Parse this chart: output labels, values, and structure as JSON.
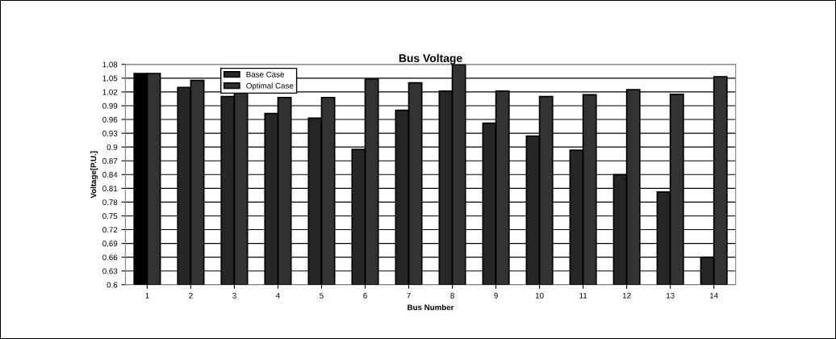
{
  "chart_data": {
    "type": "bar",
    "title": "Bus Voltage",
    "xlabel": "Bus Number",
    "ylabel": "Voltage[P.U.]",
    "categories": [
      "1",
      "2",
      "3",
      "4",
      "5",
      "6",
      "7",
      "8",
      "9",
      "10",
      "11",
      "12",
      "13",
      "14"
    ],
    "series": [
      {
        "name": "Base Case",
        "color": "#262626",
        "colors": [
          "#000000",
          "#262626",
          "#262626",
          "#262626",
          "#262626",
          "#262626",
          "#262626",
          "#262626",
          "#262626",
          "#262626",
          "#262626",
          "#262626",
          "#262626",
          "#262626"
        ],
        "values": [
          1.06,
          1.03,
          1.01,
          0.973,
          0.963,
          0.895,
          0.98,
          1.022,
          0.952,
          0.924,
          0.893,
          0.84,
          0.802,
          0.66
        ]
      },
      {
        "name": "Optimal Case",
        "color": "#333333",
        "values": [
          1.06,
          1.045,
          1.018,
          1.008,
          1.008,
          1.048,
          1.04,
          1.08,
          1.022,
          1.01,
          1.014,
          1.025,
          1.015,
          1.053
        ]
      }
    ],
    "ylim": [
      0.6,
      1.08
    ],
    "yticks": [
      0.6,
      0.63,
      0.66,
      0.69,
      0.72,
      0.75,
      0.78,
      0.81,
      0.84,
      0.87,
      0.9,
      0.93,
      0.96,
      0.99,
      1.02,
      1.05,
      1.08
    ],
    "grid": "y",
    "legend": "top left"
  }
}
